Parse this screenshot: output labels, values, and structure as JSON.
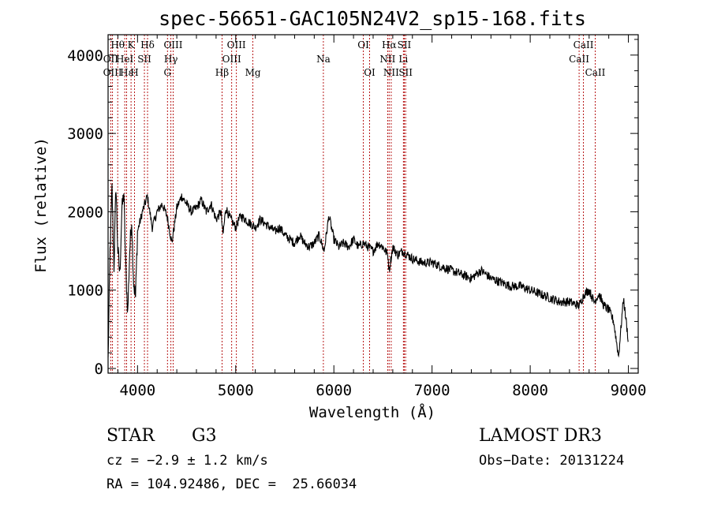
{
  "chart_data": {
    "type": "line",
    "title": "spec-56651-GAC105N24V2_sp15-168.fits",
    "xlabel": "Wavelength (Å)",
    "ylabel": "Flux (relative)",
    "xlim": [
      3700,
      9100
    ],
    "ylim": [
      -60,
      4260
    ],
    "xticks": [
      4000,
      5000,
      6000,
      7000,
      8000,
      9000
    ],
    "yticks": [
      0,
      1000,
      2000,
      3000,
      4000
    ],
    "grid": false,
    "series": [
      {
        "name": "flux",
        "x": [
          3700,
          3720,
          3740,
          3760,
          3780,
          3800,
          3820,
          3840,
          3860,
          3880,
          3900,
          3920,
          3940,
          3960,
          3980,
          4000,
          4050,
          4100,
          4150,
          4200,
          4250,
          4300,
          4350,
          4400,
          4450,
          4500,
          4550,
          4600,
          4650,
          4700,
          4750,
          4800,
          4850,
          4870,
          4900,
          4950,
          5000,
          5050,
          5100,
          5150,
          5200,
          5250,
          5300,
          5350,
          5400,
          5450,
          5500,
          5550,
          5600,
          5650,
          5700,
          5750,
          5800,
          5850,
          5900,
          5950,
          6000,
          6050,
          6100,
          6150,
          6200,
          6250,
          6300,
          6350,
          6400,
          6450,
          6500,
          6550,
          6563,
          6600,
          6650,
          6700,
          6750,
          6800,
          6900,
          7000,
          7100,
          7200,
          7300,
          7400,
          7500,
          7600,
          7700,
          7800,
          7900,
          8000,
          8100,
          8200,
          8300,
          8400,
          8500,
          8550,
          8600,
          8650,
          8700,
          8750,
          8800,
          8850,
          8900,
          8950,
          9000
        ],
        "y": [
          100,
          1500,
          2300,
          1300,
          2350,
          1500,
          1200,
          2000,
          2250,
          1300,
          700,
          1500,
          1900,
          1100,
          900,
          1750,
          2000,
          2200,
          1800,
          2000,
          2100,
          1950,
          1600,
          2050,
          2200,
          2100,
          2000,
          2050,
          2150,
          2000,
          2100,
          1900,
          2000,
          1700,
          2050,
          1900,
          1800,
          1950,
          1900,
          1850,
          1800,
          1900,
          1850,
          1800,
          1750,
          1800,
          1700,
          1650,
          1600,
          1700,
          1600,
          1550,
          1600,
          1700,
          1500,
          1950,
          1650,
          1550,
          1600,
          1550,
          1650,
          1550,
          1600,
          1550,
          1500,
          1600,
          1550,
          1450,
          1250,
          1550,
          1450,
          1500,
          1450,
          1400,
          1350,
          1350,
          1300,
          1250,
          1200,
          1150,
          1250,
          1150,
          1100,
          1050,
          1050,
          1000,
          950,
          900,
          850,
          850,
          800,
          950,
          1000,
          850,
          950,
          800,
          750,
          600,
          150,
          900,
          350
        ]
      }
    ],
    "spectral_lines": [
      {
        "label": "Hθ",
        "wavelength": 3798,
        "row": 1
      },
      {
        "label": "OII",
        "wavelength": 3727,
        "row": 2
      },
      {
        "label": "OIII",
        "wavelength": 3745,
        "row": 3
      },
      {
        "label": "Hε",
        "wavelength": 3889,
        "row": 3
      },
      {
        "label": "HeI",
        "wavelength": 3870,
        "row": 2
      },
      {
        "label": "K",
        "wavelength": 3934,
        "row": 1
      },
      {
        "label": "H",
        "wavelength": 3969,
        "row": 3
      },
      {
        "label": "SII",
        "wavelength": 4070,
        "row": 2
      },
      {
        "label": "Hδ",
        "wavelength": 4102,
        "row": 1
      },
      {
        "label": "OIII",
        "wavelength": 4363,
        "row": 1
      },
      {
        "label": "Hγ",
        "wavelength": 4340,
        "row": 2
      },
      {
        "label": "G",
        "wavelength": 4305,
        "row": 3
      },
      {
        "label": "Hβ",
        "wavelength": 4861,
        "row": 3
      },
      {
        "label": "OIII",
        "wavelength": 5007,
        "row": 1
      },
      {
        "label": "OIII",
        "wavelength": 4959,
        "row": 2
      },
      {
        "label": "Mg",
        "wavelength": 5175,
        "row": 3
      },
      {
        "label": "Na",
        "wavelength": 5893,
        "row": 2
      },
      {
        "label": "OI",
        "wavelength": 6300,
        "row": 1
      },
      {
        "label": "OI",
        "wavelength": 6364,
        "row": 3
      },
      {
        "label": "Hα",
        "wavelength": 6563,
        "row": 1
      },
      {
        "label": "NII",
        "wavelength": 6548,
        "row": 2
      },
      {
        "label": "NII",
        "wavelength": 6584,
        "row": 3
      },
      {
        "label": "SII",
        "wavelength": 6717,
        "row": 1
      },
      {
        "label": "Li",
        "wavelength": 6708,
        "row": 2
      },
      {
        "label": "SII",
        "wavelength": 6731,
        "row": 3
      },
      {
        "label": "CaII",
        "wavelength": 8542,
        "row": 1
      },
      {
        "label": "CaII",
        "wavelength": 8498,
        "row": 2
      },
      {
        "label": "CaII",
        "wavelength": 8662,
        "row": 3
      }
    ]
  },
  "info": {
    "object_class": "STAR",
    "subclass": "G3",
    "survey": "LAMOST DR3",
    "cz": "cz = −2.9 ± 1.2 km/s",
    "obs_date": "Obs−Date: 20131224",
    "coords": "RA = 104.92486, DEC =  25.66034"
  }
}
